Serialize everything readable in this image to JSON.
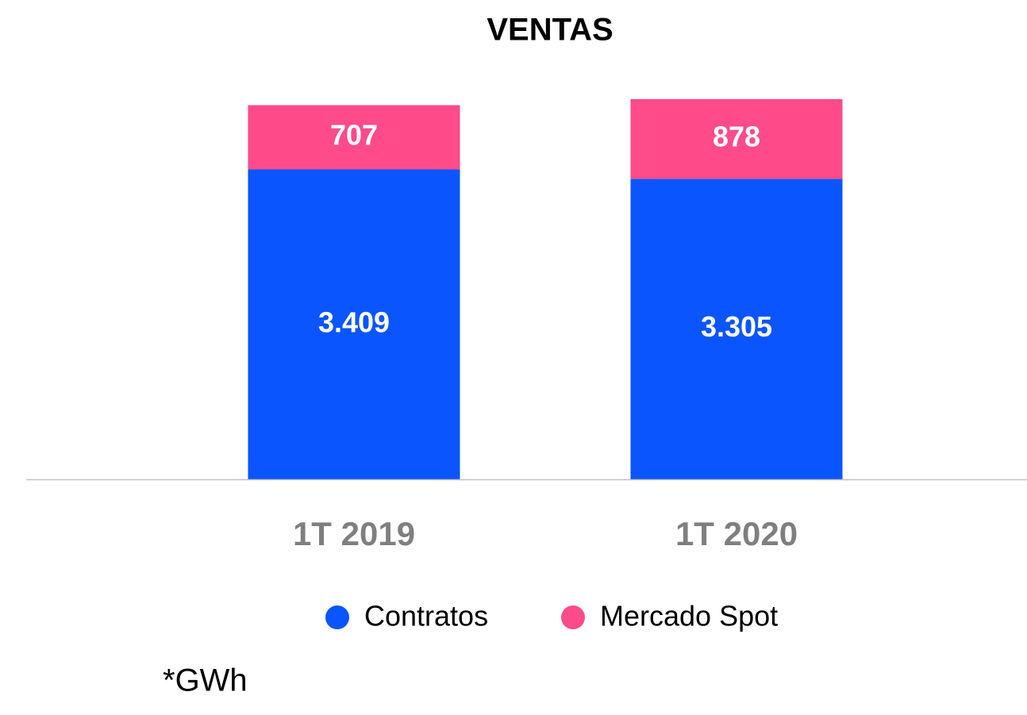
{
  "chart_data": {
    "type": "stacked_bar",
    "title": "VENTAS",
    "categories": [
      "1T 2019",
      "1T 2020"
    ],
    "series": [
      {
        "name": "Contratos",
        "color": "#0a55fd",
        "values": [
          3409,
          3305
        ],
        "value_labels": [
          "3.409",
          "3.305"
        ]
      },
      {
        "name": "Mercado Spot",
        "color": "#ff4b8a",
        "values": [
          707,
          878
        ],
        "value_labels": [
          "707",
          "878"
        ]
      }
    ],
    "ylim": [
      0,
      4400
    ],
    "note": "*GWh"
  }
}
